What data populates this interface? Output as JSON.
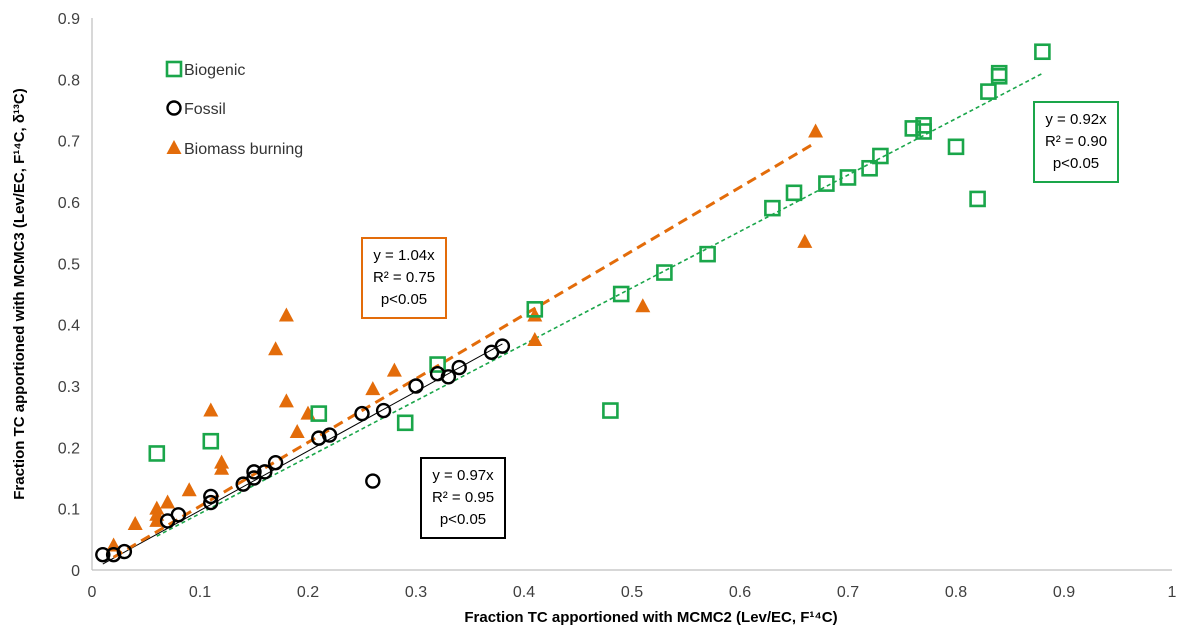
{
  "chart_data": {
    "type": "scatter",
    "xlabel": "Fraction TC apportioned with MCMC2 (Lev/EC, F¹⁴C)",
    "ylabel": "Fraction TC apportioned with MCMC3 (Lev/EC, F¹⁴C, δ¹³C)",
    "xlim": [
      0,
      1
    ],
    "ylim": [
      0,
      0.9
    ],
    "x_ticks": [
      "0",
      "0.1",
      "0.2",
      "0.3",
      "0.4",
      "0.5",
      "0.6",
      "0.7",
      "0.8",
      "0.9",
      "1"
    ],
    "y_ticks": [
      "0",
      "0.1",
      "0.2",
      "0.3",
      "0.4",
      "0.5",
      "0.6",
      "0.7",
      "0.8",
      "0.9"
    ],
    "grid": false,
    "legend_position": "top-left",
    "series": [
      {
        "name": "Biogenic",
        "marker": "square",
        "color": "#1aa64a",
        "trend_slope": 0.92,
        "trend_range": [
          0.06,
          0.88
        ],
        "trend_style": "dotted",
        "annotation": [
          "y = 0.92x",
          "R² = 0.90",
          "p<0.05"
        ],
        "points": [
          [
            0.06,
            0.19
          ],
          [
            0.11,
            0.21
          ],
          [
            0.21,
            0.255
          ],
          [
            0.29,
            0.24
          ],
          [
            0.32,
            0.335
          ],
          [
            0.41,
            0.425
          ],
          [
            0.48,
            0.26
          ],
          [
            0.49,
            0.45
          ],
          [
            0.53,
            0.485
          ],
          [
            0.57,
            0.515
          ],
          [
            0.63,
            0.59
          ],
          [
            0.65,
            0.615
          ],
          [
            0.68,
            0.63
          ],
          [
            0.7,
            0.64
          ],
          [
            0.72,
            0.655
          ],
          [
            0.73,
            0.675
          ],
          [
            0.76,
            0.72
          ],
          [
            0.77,
            0.715
          ],
          [
            0.77,
            0.725
          ],
          [
            0.8,
            0.69
          ],
          [
            0.82,
            0.605
          ],
          [
            0.83,
            0.78
          ],
          [
            0.84,
            0.805
          ],
          [
            0.84,
            0.81
          ],
          [
            0.88,
            0.845
          ]
        ]
      },
      {
        "name": "Fossil",
        "marker": "circle",
        "color": "#000000",
        "trend_slope": 0.97,
        "trend_range": [
          0.01,
          0.38
        ],
        "trend_style": "solid",
        "annotation": [
          "y = 0.97x",
          "R² = 0.95",
          "p<0.05"
        ],
        "points": [
          [
            0.01,
            0.025
          ],
          [
            0.02,
            0.025
          ],
          [
            0.03,
            0.03
          ],
          [
            0.07,
            0.08
          ],
          [
            0.08,
            0.09
          ],
          [
            0.11,
            0.11
          ],
          [
            0.11,
            0.12
          ],
          [
            0.14,
            0.14
          ],
          [
            0.15,
            0.15
          ],
          [
            0.15,
            0.16
          ],
          [
            0.16,
            0.16
          ],
          [
            0.17,
            0.175
          ],
          [
            0.21,
            0.215
          ],
          [
            0.22,
            0.22
          ],
          [
            0.25,
            0.255
          ],
          [
            0.26,
            0.145
          ],
          [
            0.27,
            0.26
          ],
          [
            0.3,
            0.3
          ],
          [
            0.32,
            0.32
          ],
          [
            0.33,
            0.315
          ],
          [
            0.34,
            0.33
          ],
          [
            0.37,
            0.355
          ],
          [
            0.38,
            0.365
          ]
        ]
      },
      {
        "name": "Biomass burning",
        "marker": "triangle",
        "color": "#e36c0a",
        "trend_slope": 1.04,
        "trend_range": [
          0.02,
          0.67
        ],
        "trend_style": "dashed",
        "annotation": [
          "y = 1.04x",
          "R² = 0.75",
          "p<0.05"
        ],
        "points": [
          [
            0.02,
            0.04
          ],
          [
            0.04,
            0.075
          ],
          [
            0.06,
            0.08
          ],
          [
            0.06,
            0.09
          ],
          [
            0.06,
            0.1
          ],
          [
            0.07,
            0.11
          ],
          [
            0.09,
            0.13
          ],
          [
            0.11,
            0.26
          ],
          [
            0.12,
            0.165
          ],
          [
            0.12,
            0.175
          ],
          [
            0.17,
            0.36
          ],
          [
            0.18,
            0.275
          ],
          [
            0.18,
            0.415
          ],
          [
            0.19,
            0.225
          ],
          [
            0.2,
            0.255
          ],
          [
            0.26,
            0.295
          ],
          [
            0.28,
            0.325
          ],
          [
            0.41,
            0.415
          ],
          [
            0.41,
            0.375
          ],
          [
            0.51,
            0.43
          ],
          [
            0.66,
            0.535
          ],
          [
            0.67,
            0.715
          ]
        ]
      }
    ]
  }
}
